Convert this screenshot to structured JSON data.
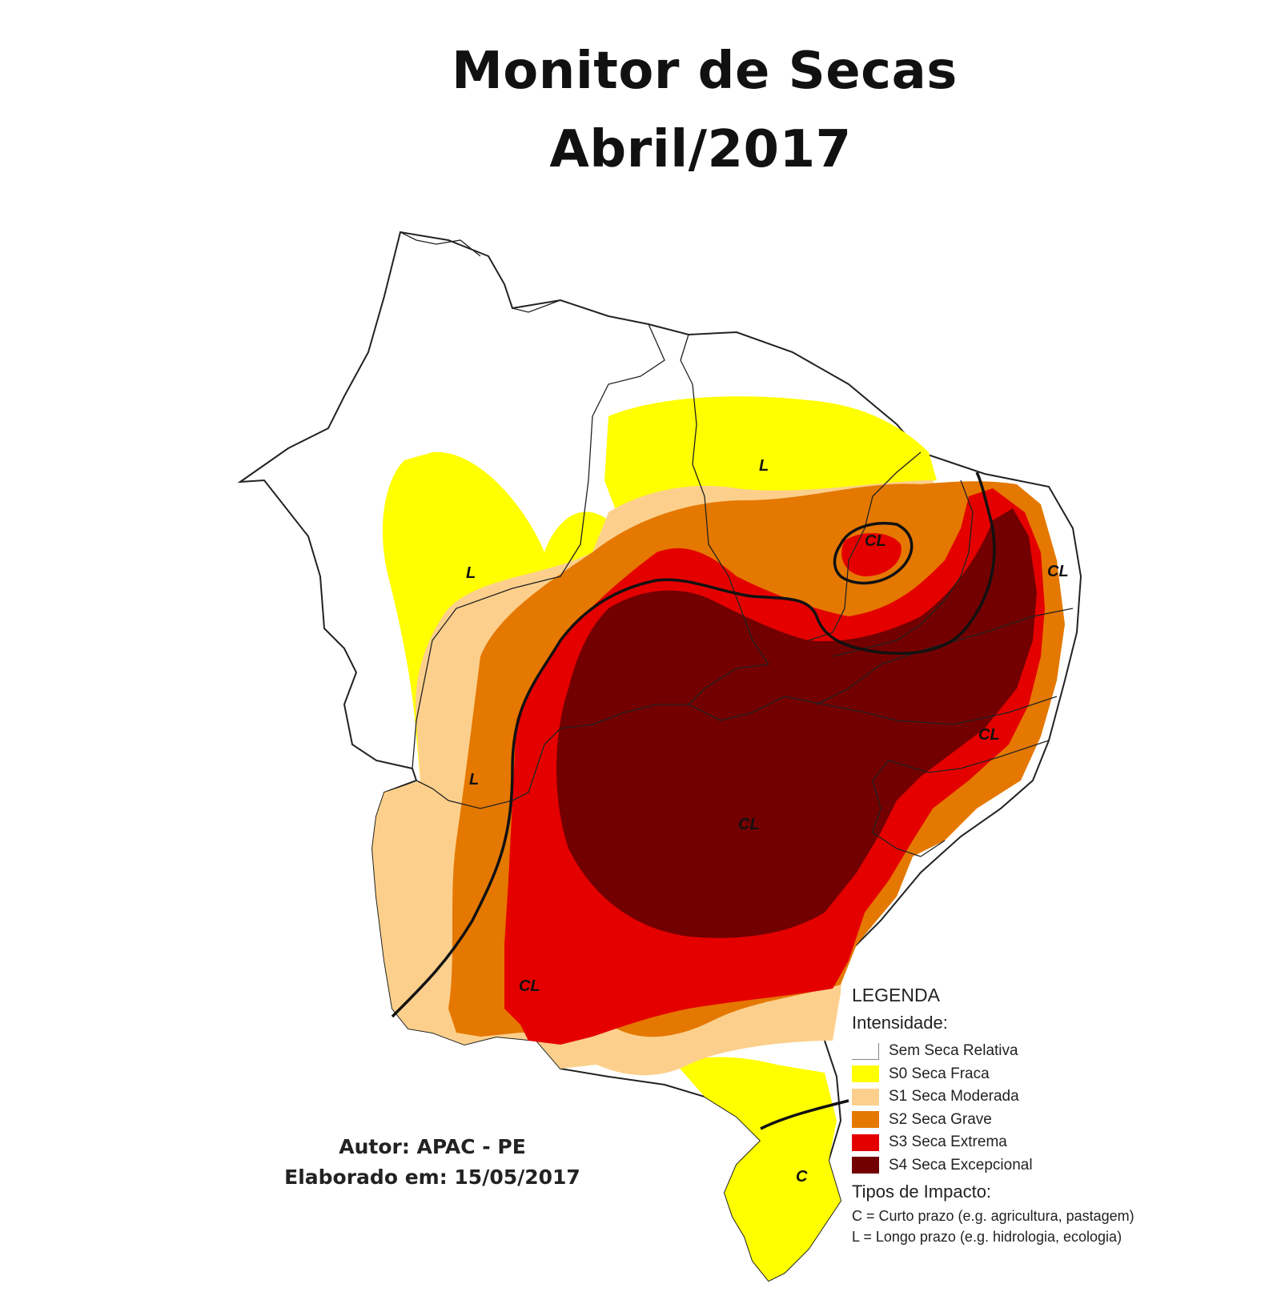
{
  "title": {
    "line1": "Monitor de Secas",
    "line2": "Abril/2017"
  },
  "author": {
    "line1": "Autor: APAC - PE",
    "line2": "Elaborado em: 15/05/2017"
  },
  "legend": {
    "title": "LEGENDA",
    "intensity_title": "Intensidade:",
    "items": [
      {
        "label": "Sem Seca Relativa",
        "color": "#ffffff"
      },
      {
        "label": "S0 Seca Fraca",
        "color": "#ffff00"
      },
      {
        "label": "S1 Seca Moderada",
        "color": "#fcd08c"
      },
      {
        "label": "S2 Seca Grave",
        "color": "#e57800"
      },
      {
        "label": "S3 Seca Extrema",
        "color": "#e50000"
      },
      {
        "label": "S4 Seca Excepcional",
        "color": "#730000"
      }
    ],
    "impact_title": "Tipos de Impacto:",
    "impacts": [
      "C = Curto prazo (e.g. agricultura, pastagem)",
      "L = Longo prazo (e.g. hidrologia, ecologia)"
    ]
  },
  "map_labels": [
    {
      "id": "l-ce",
      "text": "L"
    },
    {
      "id": "l-ma",
      "text": "L"
    },
    {
      "id": "l-pi",
      "text": "L"
    },
    {
      "id": "cl-rn",
      "text": "CL"
    },
    {
      "id": "cl-pb",
      "text": "CL"
    },
    {
      "id": "cl-pe",
      "text": "CL"
    },
    {
      "id": "cl-center",
      "text": "CL"
    },
    {
      "id": "cl-sw",
      "text": "CL"
    },
    {
      "id": "c-south",
      "text": "C"
    }
  ]
}
